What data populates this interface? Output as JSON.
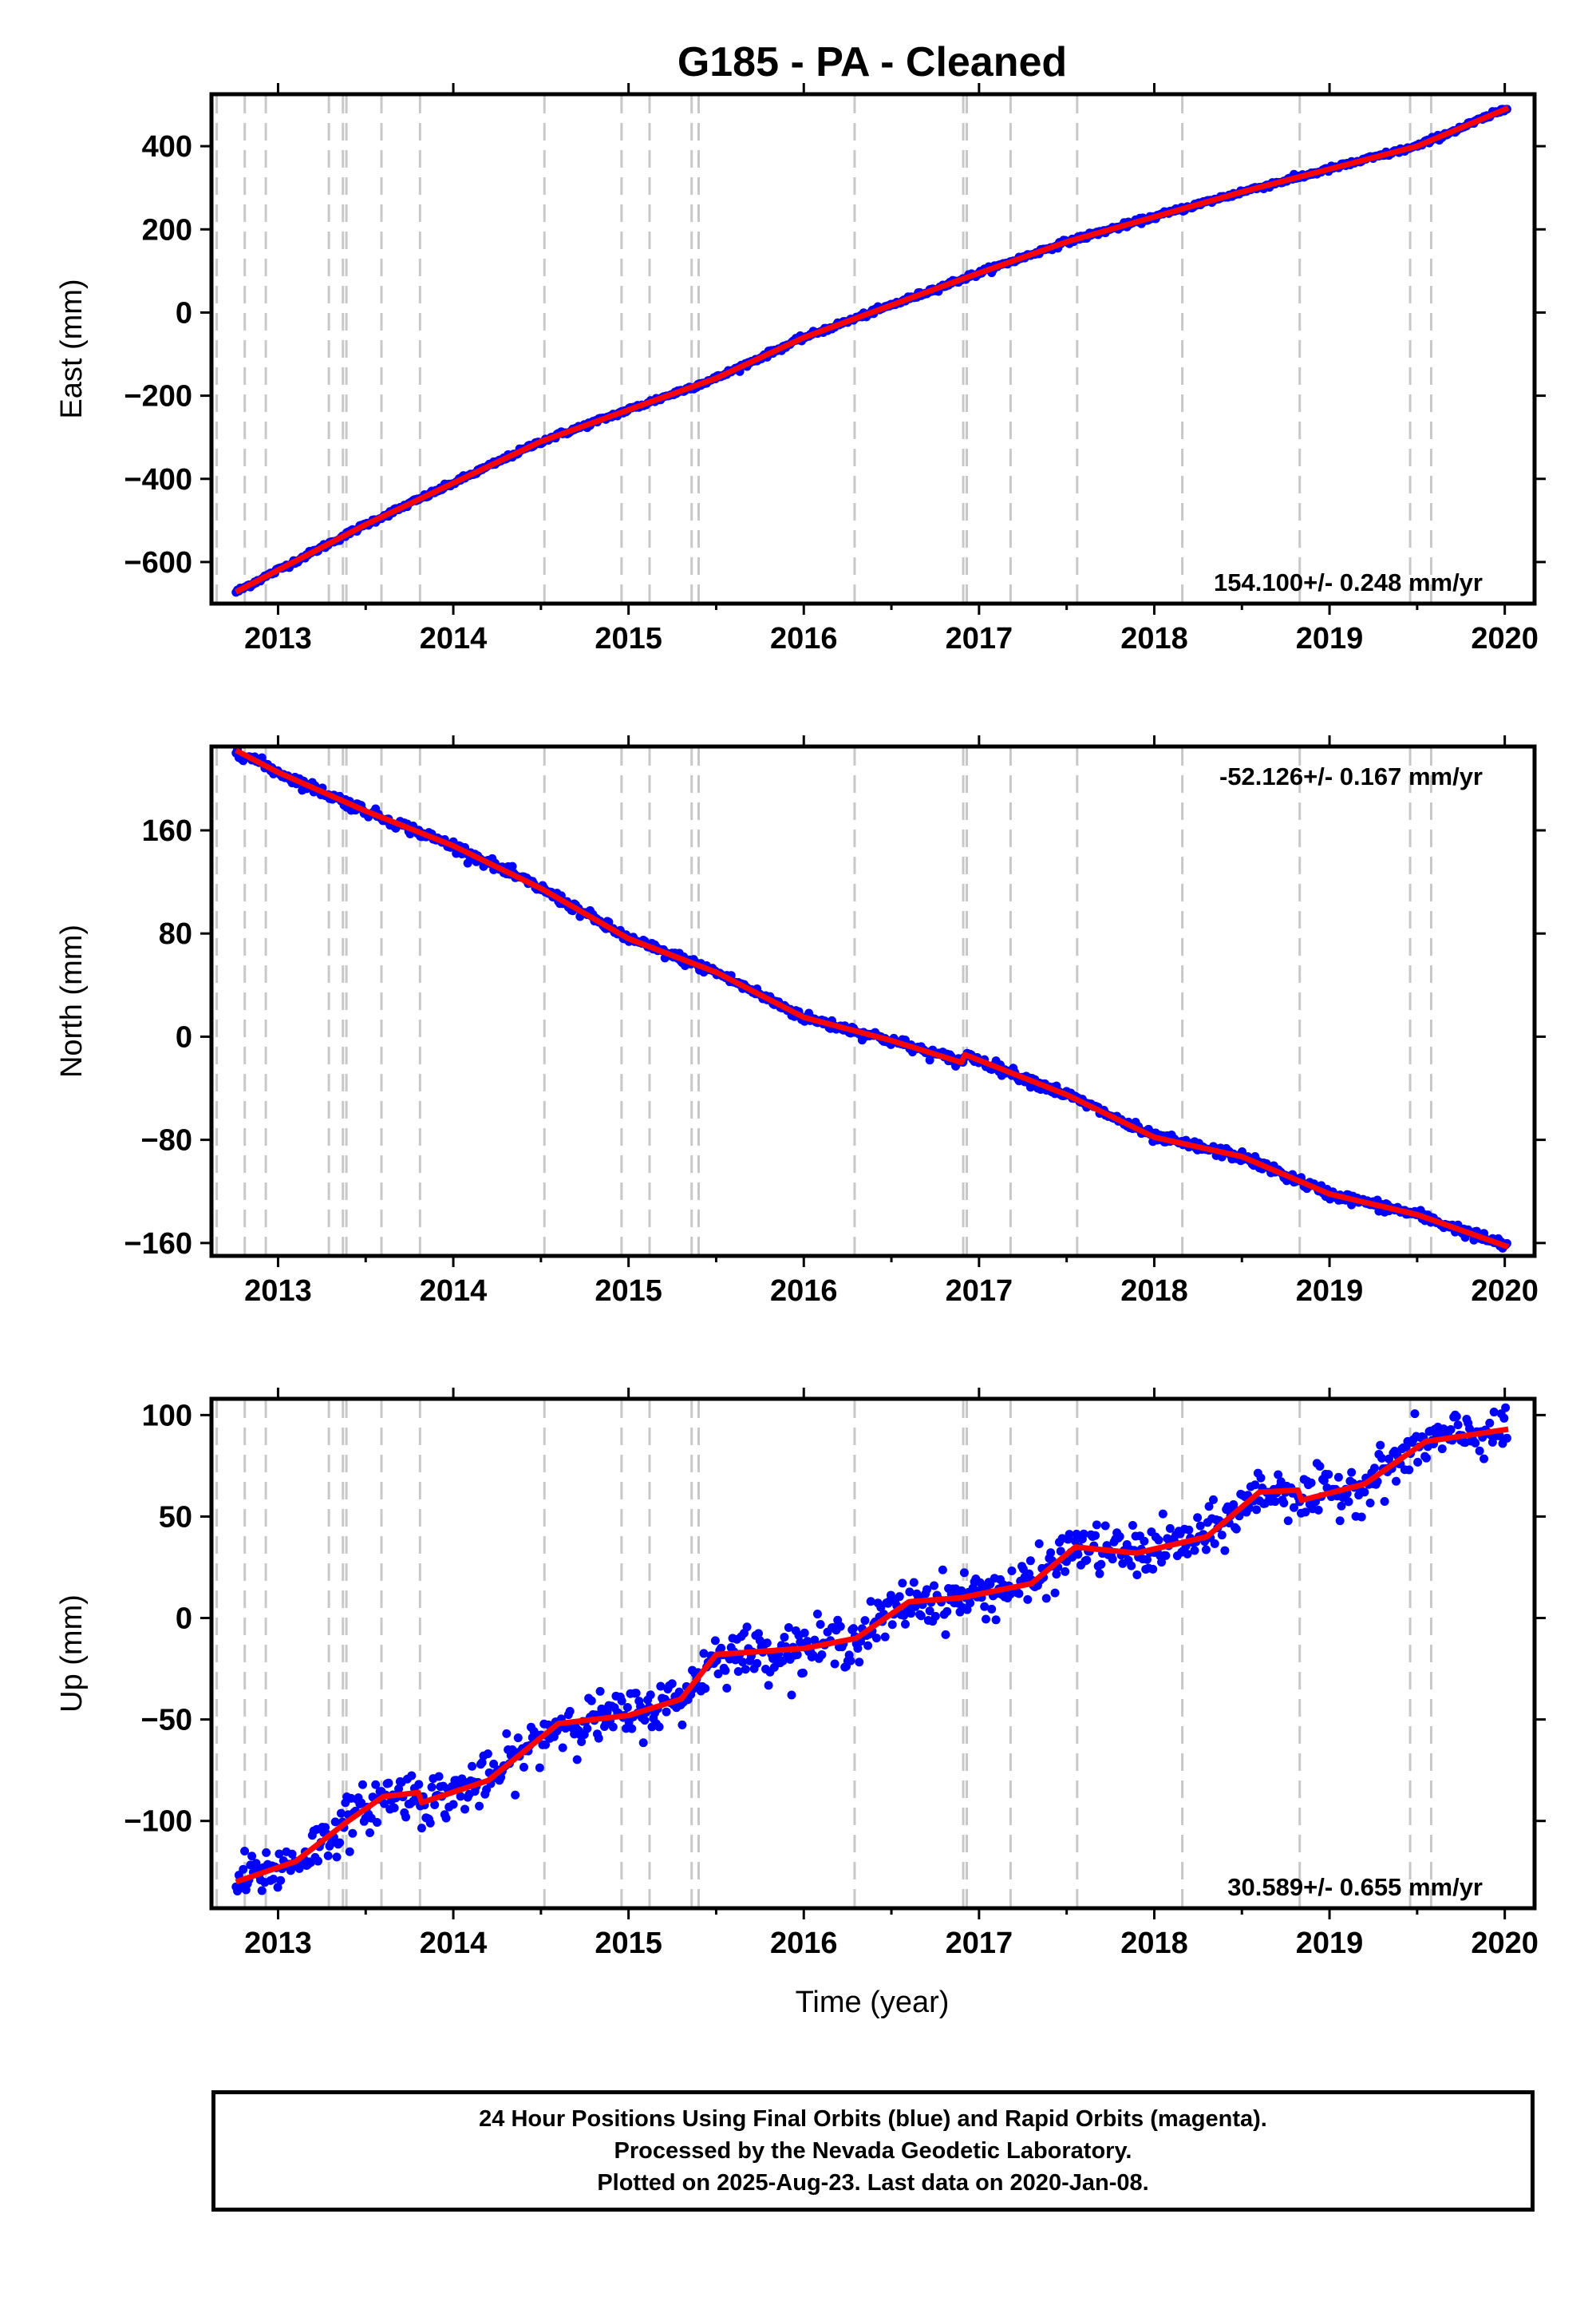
{
  "title": "G185  - PA - Cleaned",
  "xlabel": "Time (year)",
  "footer": {
    "lines": [
      "24 Hour Positions Using Final Orbits (blue) and Rapid Orbits (magenta).",
      "Processed by the Nevada Geodetic Laboratory.",
      "Plotted on 2025-Aug-23. Last data on 2020-Jan-08."
    ]
  },
  "colors": {
    "data": "#0000ff",
    "model": "#ff0000",
    "event_lines": "#c8c8c8",
    "axes": "#000000"
  },
  "chart_data": [
    {
      "type": "scatter",
      "ylabel": "East (mm)",
      "rate_label": "154.100+/- 0.248 mm/yr",
      "rate_position": "bottom-right",
      "xlim": [
        2012.62,
        2020.17
      ],
      "ylim": [
        -700,
        525
      ],
      "xticks": [
        2013,
        2014,
        2015,
        2016,
        2017,
        2018,
        2019,
        2020
      ],
      "yticks": [
        -600,
        -400,
        -200,
        0,
        200,
        400
      ],
      "start": [
        2012.76,
        -672
      ],
      "end": [
        2020.02,
        492
      ],
      "model_knots": [
        [
          2012.76,
          -672
        ],
        [
          2013.5,
          -510
        ],
        [
          2014.5,
          -310
        ],
        [
          2015.5,
          -158
        ],
        [
          2016.0,
          -60
        ],
        [
          2016.9,
          80
        ],
        [
          2017.5,
          170
        ],
        [
          2018.5,
          290
        ],
        [
          2019.5,
          400
        ],
        [
          2020.02,
          492
        ]
      ],
      "noise_sd": 3,
      "seasonal_amplitude": 0
    },
    {
      "type": "scatter",
      "ylabel": "North (mm)",
      "rate_label": "-52.126+/- 0.167 mm/yr",
      "rate_position": "top-right",
      "xlim": [
        2012.62,
        2020.17
      ],
      "ylim": [
        -170,
        225
      ],
      "xticks": [
        2013,
        2014,
        2015,
        2016,
        2017,
        2018,
        2019,
        2020
      ],
      "yticks": [
        -160,
        -80,
        0,
        80,
        160
      ],
      "start": [
        2012.76,
        222
      ],
      "end": [
        2020.02,
        -163
      ],
      "model_knots": [
        [
          2012.76,
          222
        ],
        [
          2013.0,
          205
        ],
        [
          2013.5,
          175
        ],
        [
          2014.0,
          148
        ],
        [
          2014.5,
          115
        ],
        [
          2015.0,
          76
        ],
        [
          2015.5,
          50
        ],
        [
          2016.0,
          15
        ],
        [
          2016.5,
          -3
        ],
        [
          2016.9,
          -20
        ],
        [
          2016.92,
          -14
        ],
        [
          2017.5,
          -45
        ],
        [
          2018.0,
          -78
        ],
        [
          2018.5,
          -93
        ],
        [
          2019.0,
          -122
        ],
        [
          2019.5,
          -138
        ],
        [
          2020.02,
          -163
        ]
      ],
      "noise_sd": 2,
      "seasonal_amplitude": 0
    },
    {
      "type": "scatter",
      "ylabel": "Up (mm)",
      "rate_label": "30.589+/- 0.655 mm/yr",
      "rate_position": "bottom-right",
      "xlim": [
        2012.62,
        2020.17
      ],
      "ylim": [
        -143,
        108
      ],
      "xticks": [
        2013,
        2014,
        2015,
        2016,
        2017,
        2018,
        2019,
        2020
      ],
      "yticks": [
        -100,
        -50,
        0,
        50,
        100
      ],
      "start": [
        2012.76,
        -130
      ],
      "end": [
        2020.02,
        92
      ],
      "model_knots": [
        [
          2012.76,
          -130
        ],
        [
          2013.1,
          -120
        ],
        [
          2013.4,
          -100
        ],
        [
          2013.6,
          -88
        ],
        [
          2013.8,
          -86
        ],
        [
          2013.82,
          -91
        ],
        [
          2014.2,
          -80
        ],
        [
          2014.6,
          -52
        ],
        [
          2015.0,
          -48
        ],
        [
          2015.3,
          -40
        ],
        [
          2015.5,
          -18
        ],
        [
          2016.0,
          -15
        ],
        [
          2016.3,
          -10
        ],
        [
          2016.6,
          8
        ],
        [
          2016.9,
          10
        ],
        [
          2017.3,
          17
        ],
        [
          2017.55,
          35
        ],
        [
          2017.9,
          32
        ],
        [
          2018.3,
          40
        ],
        [
          2018.6,
          62
        ],
        [
          2018.82,
          63
        ],
        [
          2018.84,
          58
        ],
        [
          2019.2,
          66
        ],
        [
          2019.55,
          87
        ],
        [
          2020.02,
          93
        ]
      ],
      "noise_sd": 6,
      "seasonal_amplitude": 0
    }
  ],
  "event_lines_x": [
    2012.65,
    2012.81,
    2012.93,
    2013.29,
    2013.37,
    2013.39,
    2013.59,
    2013.81,
    2014.52,
    2014.96,
    2015.12,
    2015.36,
    2015.4,
    2016.29,
    2016.91,
    2016.93,
    2017.18,
    2017.56,
    2018.16,
    2018.83,
    2019.46,
    2019.58
  ]
}
